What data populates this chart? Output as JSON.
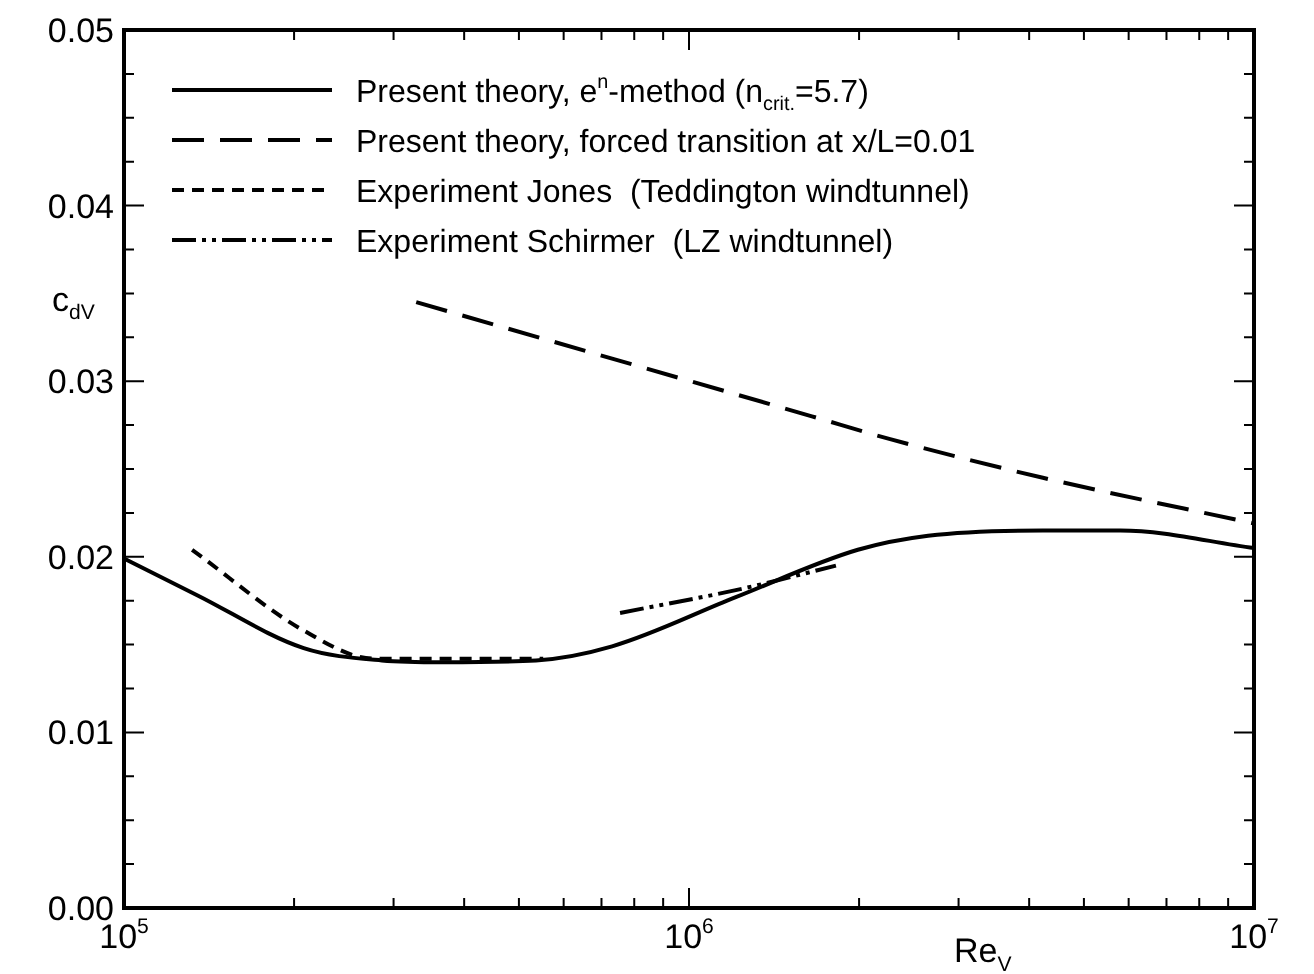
{
  "chart_data": {
    "type": "line",
    "xlabel": "Re$_{V}$",
    "ylabel": "c$_{dV}$",
    "log": "x",
    "grid": false,
    "legend": "top left",
    "marker": "none",
    "xlim": [
      100000,
      10000000
    ],
    "xticks": [
      {
        "value": 100000,
        "label": "10$^{5}$"
      },
      {
        "value": 200000,
        "label": null
      },
      {
        "value": 300000,
        "label": null
      },
      {
        "value": 400000,
        "label": null
      },
      {
        "value": 500000,
        "label": null
      },
      {
        "value": 600000,
        "label": null
      },
      {
        "value": 700000,
        "label": null
      },
      {
        "value": 800000,
        "label": null
      },
      {
        "value": 900000,
        "label": null
      },
      {
        "value": 1000000,
        "label": "10$^{6}$"
      },
      {
        "value": 2000000,
        "label": null
      },
      {
        "value": 3000000,
        "label": null
      },
      {
        "value": 4000000,
        "label": null
      },
      {
        "value": 5000000,
        "label": null
      },
      {
        "value": 6000000,
        "label": null
      },
      {
        "value": 7000000,
        "label": null
      },
      {
        "value": 8000000,
        "label": null
      },
      {
        "value": 9000000,
        "label": null
      },
      {
        "value": 10000000,
        "label": "10$^{7}$"
      }
    ],
    "ylim": [
      0,
      0.05
    ],
    "yticks": [
      {
        "value": 0,
        "label": "0.00"
      },
      {
        "value": 0.0025,
        "label": null
      },
      {
        "value": 0.005,
        "label": null
      },
      {
        "value": 0.0075,
        "label": null
      },
      {
        "value": 0.01,
        "label": "0.01"
      },
      {
        "value": 0.0125,
        "label": null
      },
      {
        "value": 0.015,
        "label": null
      },
      {
        "value": 0.0175,
        "label": null
      },
      {
        "value": 0.02,
        "label": "0.02"
      },
      {
        "value": 0.0225,
        "label": null
      },
      {
        "value": 0.025,
        "label": null
      },
      {
        "value": 0.0275,
        "label": null
      },
      {
        "value": 0.03,
        "label": "0.03"
      },
      {
        "value": 0.0325,
        "label": null
      },
      {
        "value": 0.035,
        "label": null
      },
      {
        "value": 0.0375,
        "label": null
      },
      {
        "value": 0.04,
        "label": "0.04"
      },
      {
        "value": 0.0425,
        "label": null
      },
      {
        "value": 0.045,
        "label": null
      },
      {
        "value": 0.0475,
        "label": null
      },
      {
        "value": 0.05,
        "label": "0.05"
      }
    ],
    "series": [
      {
        "name": "Present theory, e$^{n}$-method (n$_{crit.}$=5.7)",
        "color": "#000000",
        "line_style": "solid",
        "x": [
          100000,
          135000,
          208000,
          286000,
          367000,
          536000,
          731000,
          1210000,
          1990000,
          2650000,
          4230000,
          5800000,
          10000000
        ],
        "values": [
          0.0199,
          0.0178,
          0.0148,
          0.0141,
          0.014,
          0.0141,
          0.0149,
          0.0177,
          0.0204,
          0.0212,
          0.0215,
          0.0215,
          0.0205
        ]
      },
      {
        "name": "Present theory, forced transition at x/L=0.01",
        "color": "#000000",
        "line_style": "dashed",
        "x": [
          329000,
          1650000,
          2270000,
          4230000,
          10000000
        ],
        "values": [
          0.0345,
          0.028,
          0.0267,
          0.0245,
          0.0219
        ]
      },
      {
        "name": "Experiment Jones  (Teddington windtunnel)",
        "color": "#000000",
        "line_style": "dotted",
        "x": [
          132000,
          208000,
          277000,
          552000
        ],
        "values": [
          0.0204,
          0.0158,
          0.0142,
          0.0142
        ]
      },
      {
        "name": "Experiment Schirmer  (LZ windtunnel)",
        "color": "#000000",
        "line_style": "dashdot",
        "x": [
          755000,
          1250000,
          1820000
        ],
        "values": [
          0.0168,
          0.0182,
          0.0195
        ]
      }
    ]
  }
}
